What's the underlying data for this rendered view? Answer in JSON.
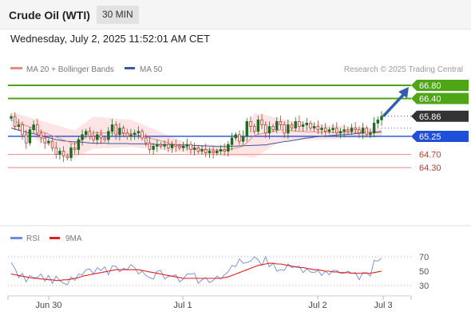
{
  "header": {
    "title": "Crude Oil (WTI)",
    "timeframe": "30 MIN",
    "datetime": "Wednesday, July 2, 2025 11:52:01 AM CET"
  },
  "legend": {
    "ma20": "MA 20 + Bollinger Bands",
    "ma50": "MA 50",
    "credit": "Research © 2025 Trading Central",
    "rsi": "RSI",
    "rsi_ma": "9MA"
  },
  "colors": {
    "bull": "#1f6b22",
    "bear": "#c0392b",
    "ma20": "#e98a80",
    "band_fill": "#fde0e0",
    "ma50": "#3d5aa0",
    "resistance": "#4ea516",
    "support_line": "#e98a8a",
    "pivot": "#1f4ed8",
    "last_price": "#333333",
    "arrow": "#2f5fae",
    "rsi": "#6b8de3",
    "rsi_ma": "#e02020"
  },
  "chart_data": {
    "type": "candlestick",
    "timeframe": "30 MIN",
    "x_tick_labels": [
      "Jun 30",
      "Jul 1",
      "Jul 2",
      "Jul 3"
    ],
    "y_range": [
      64.0,
      67.0
    ],
    "levels": [
      {
        "value": "66.80",
        "style": "resistance"
      },
      {
        "value": "66.40",
        "style": "resistance"
      },
      {
        "value": "65.86",
        "style": "last-price"
      },
      {
        "value": "65.25",
        "style": "pivot"
      },
      {
        "value": "64.70",
        "style": "support"
      },
      {
        "value": "64.30",
        "style": "support"
      }
    ],
    "closes": [
      65.85,
      65.55,
      65.6,
      65.3,
      65.05,
      65.45,
      65.6,
      65.35,
      65.2,
      65.05,
      65.1,
      64.9,
      64.7,
      64.8,
      64.65,
      64.6,
      64.9,
      64.85,
      65.15,
      65.3,
      65.4,
      65.25,
      65.15,
      65.3,
      65.2,
      65.15,
      65.4,
      65.6,
      65.3,
      65.5,
      65.35,
      65.25,
      65.3,
      65.35,
      65.4,
      65.2,
      65.05,
      64.85,
      64.95,
      65.0,
      64.95,
      65.0,
      64.9,
      65.0,
      64.95,
      64.9,
      64.95,
      65.0,
      64.85,
      64.9,
      64.8,
      64.85,
      64.75,
      64.8,
      64.75,
      64.8,
      64.85,
      64.8,
      65.0,
      65.2,
      65.3,
      65.1,
      65.25,
      65.7,
      65.55,
      65.4,
      65.75,
      65.6,
      65.35,
      65.55,
      65.45,
      65.7,
      65.6,
      65.35,
      65.6,
      65.5,
      65.7,
      65.55,
      65.6,
      65.65,
      65.5,
      65.55,
      65.45,
      65.5,
      65.4,
      65.45,
      65.5,
      65.35,
      65.4,
      65.45,
      65.4,
      65.5,
      65.45,
      65.35,
      65.5,
      65.3,
      65.35,
      65.65,
      65.75,
      65.86
    ],
    "bollinger_band": {
      "upper": [
        65.99,
        65.96,
        65.92,
        65.89,
        65.86,
        65.82,
        65.79,
        65.76,
        65.72,
        65.69,
        65.66,
        65.62,
        65.59,
        65.56,
        65.53,
        65.49,
        65.46,
        65.43,
        65.51,
        65.6,
        65.68,
        65.77,
        65.85,
        65.84,
        65.83,
        65.82,
        65.81,
        65.8,
        65.79,
        65.78,
        65.77,
        65.76,
        65.76,
        65.71,
        65.67,
        65.62,
        65.57,
        65.52,
        65.48,
        65.43,
        65.38,
        65.33,
        65.28,
        65.24,
        65.19,
        65.14,
        65.1,
        65.05,
        65.0,
        65.0,
        65.0,
        65.0,
        65.0,
        65.0,
        65.0,
        65.0,
        65.0,
        65.0,
        65.05,
        65.1,
        65.15,
        65.2,
        65.25,
        65.49,
        65.72,
        65.96,
        65.94,
        65.91,
        65.89,
        65.87,
        65.84,
        65.82,
        65.79,
        65.77,
        65.75,
        65.72,
        65.7,
        65.69,
        65.68,
        65.66,
        65.65,
        65.64,
        65.62,
        65.61,
        65.6,
        65.59,
        65.58,
        65.58,
        65.57,
        65.56,
        65.56,
        65.55,
        65.54,
        65.54,
        65.53,
        65.52,
        65.52,
        65.51,
        65.5,
        65.5
      ],
      "lower": [
        65.51,
        65.45,
        65.4,
        65.35,
        65.29,
        65.24,
        65.19,
        65.13,
        65.08,
        65.03,
        64.97,
        64.92,
        64.87,
        64.81,
        64.76,
        64.71,
        64.65,
        64.6,
        64.65,
        64.71,
        64.76,
        64.82,
        64.87,
        64.88,
        64.88,
        64.89,
        64.89,
        64.9,
        64.91,
        64.91,
        64.92,
        64.92,
        64.93,
        64.92,
        64.91,
        64.89,
        64.88,
        64.87,
        64.86,
        64.85,
        64.84,
        64.82,
        64.81,
        64.8,
        64.79,
        64.78,
        64.76,
        64.75,
        64.74,
        64.73,
        64.72,
        64.71,
        64.7,
        64.69,
        64.68,
        64.66,
        64.65,
        64.64,
        64.64,
        64.64,
        64.64,
        64.64,
        64.64,
        64.63,
        64.61,
        64.6,
        64.67,
        64.74,
        64.82,
        64.89,
        64.96,
        65.03,
        65.1,
        65.1,
        65.11,
        65.11,
        65.12,
        65.12,
        65.13,
        65.13,
        65.14,
        65.14,
        65.14,
        65.15,
        65.15,
        65.16,
        65.16,
        65.17,
        65.17,
        65.18,
        65.18,
        65.19,
        65.19,
        65.2,
        65.2,
        65.21,
        65.21,
        65.22,
        65.22,
        65.23
      ]
    },
    "ma20": [
      65.75,
      65.71,
      65.66,
      65.62,
      65.57,
      65.53,
      65.49,
      65.44,
      65.4,
      65.36,
      65.31,
      65.27,
      65.23,
      65.18,
      65.14,
      65.1,
      65.05,
      65.01,
      65.08,
      65.15,
      65.22,
      65.29,
      65.36,
      65.36,
      65.36,
      65.35,
      65.35,
      65.35,
      65.35,
      65.35,
      65.34,
      65.34,
      65.34,
      65.31,
      65.29,
      65.26,
      65.23,
      65.2,
      65.17,
      65.14,
      65.11,
      65.08,
      65.05,
      65.02,
      64.99,
      64.96,
      64.93,
      64.9,
      64.87,
      64.86,
      64.86,
      64.85,
      64.85,
      64.84,
      64.84,
      64.83,
      64.83,
      64.82,
      64.84,
      64.87,
      64.89,
      64.92,
      64.95,
      65.06,
      65.17,
      65.28,
      65.31,
      65.33,
      65.36,
      65.38,
      65.4,
      65.43,
      65.45,
      65.44,
      65.43,
      65.42,
      65.41,
      65.4,
      65.4,
      65.39,
      65.39,
      65.39,
      65.38,
      65.38,
      65.38,
      65.37,
      65.37,
      65.37,
      65.37,
      65.37,
      65.37,
      65.37,
      65.37,
      65.37,
      65.37,
      65.36,
      65.36,
      65.36,
      65.36,
      65.36
    ],
    "ma50": [
      65.5,
      65.47,
      65.44,
      65.41,
      65.38,
      65.35,
      65.33,
      65.3,
      65.27,
      65.24,
      65.21,
      65.18,
      65.15,
      65.13,
      65.11,
      65.1,
      65.09,
      65.08,
      65.08,
      65.07,
      65.06,
      65.05,
      65.04,
      65.04,
      65.04,
      65.04,
      65.03,
      65.03,
      65.03,
      65.03,
      65.03,
      65.03,
      65.02,
      65.02,
      65.02,
      65.02,
      65.01,
      65.01,
      65.01,
      65.0,
      65.0,
      65.0,
      65.0,
      64.99,
      64.99,
      64.99,
      64.99,
      64.98,
      64.98,
      64.97,
      64.97,
      64.96,
      64.96,
      64.95,
      64.95,
      64.94,
      64.94,
      64.94,
      64.94,
      64.95,
      64.95,
      64.96,
      64.96,
      64.97,
      64.97,
      64.98,
      64.98,
      64.99,
      64.99,
      65.01,
      65.03,
      65.05,
      65.07,
      65.09,
      65.1,
      65.12,
      65.14,
      65.16,
      65.18,
      65.2,
      65.21,
      65.23,
      65.24,
      65.25,
      65.26,
      65.27,
      65.28,
      65.29,
      65.3,
      65.3,
      65.31,
      65.32,
      65.33,
      65.34,
      65.35,
      65.36,
      65.37,
      65.38,
      65.39,
      65.4
    ],
    "forecast_arrow": {
      "from": 65.86,
      "to": 66.8
    },
    "rsi_panel": {
      "y_tick_labels": [
        "70",
        "50",
        "30"
      ],
      "y_range": [
        20,
        80
      ],
      "rsi": [
        62,
        54,
        41,
        47,
        35,
        44,
        41,
        41,
        46,
        36,
        44,
        33,
        43,
        37,
        33,
        31,
        42,
        37,
        46,
        45,
        52,
        53,
        46,
        55,
        51,
        56,
        45,
        57,
        57,
        49,
        54,
        52,
        59,
        55,
        46,
        50,
        44,
        41,
        39,
        50,
        51,
        39,
        43,
        43,
        45,
        35,
        39,
        46,
        46,
        47,
        33,
        38,
        41,
        34,
        37,
        43,
        39,
        45,
        49,
        58,
        56,
        67,
        61,
        62,
        64,
        70,
        66,
        58,
        70,
        56,
        61,
        50,
        52,
        51,
        60,
        55,
        56,
        57,
        48,
        53,
        49,
        48,
        51,
        44,
        50,
        45,
        51,
        51,
        47,
        47,
        50,
        47,
        48,
        38,
        48,
        48,
        43,
        65,
        64,
        68
      ],
      "rsi_ma": [
        46,
        45,
        44,
        43,
        42,
        41,
        40,
        40,
        39,
        39,
        38,
        38,
        37,
        37,
        38,
        38,
        39,
        40,
        41,
        43,
        44,
        45,
        46,
        47,
        48,
        49,
        50,
        51,
        52,
        52,
        52,
        52,
        52,
        52,
        52,
        51,
        50,
        49,
        48,
        47,
        46,
        45,
        44,
        43,
        42,
        41,
        40,
        40,
        40,
        40,
        40,
        40,
        40,
        40,
        40,
        40,
        40,
        41,
        42,
        44,
        46,
        48,
        50,
        52,
        54,
        56,
        58,
        59,
        60,
        61,
        61,
        60,
        60,
        59,
        58,
        57,
        56,
        55,
        55,
        54,
        53,
        52,
        52,
        51,
        50,
        50,
        49,
        49,
        48,
        48,
        48,
        47,
        47,
        47,
        47,
        47,
        47,
        48,
        49,
        50
      ],
      "reference_levels": [
        70,
        30
      ]
    }
  }
}
